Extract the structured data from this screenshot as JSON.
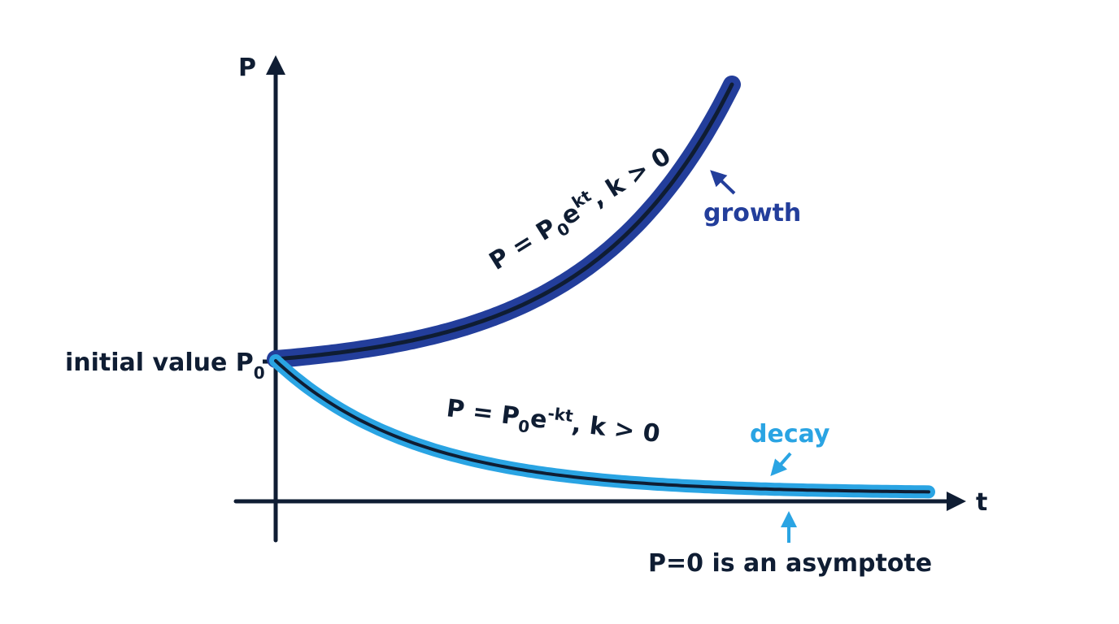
{
  "axes": {
    "y_label": "P",
    "x_label": "t"
  },
  "initial_value": {
    "text": "initial value P",
    "subscript": "0"
  },
  "growth": {
    "label": "growth",
    "formula": {
      "lhs": "P = P",
      "sub": "0",
      "base": "e",
      "exp": "kt",
      "tail": ", k > 0"
    }
  },
  "decay": {
    "label": "decay",
    "formula": {
      "lhs": "P = P",
      "sub": "0",
      "base": "e",
      "exp": "-kt",
      "tail": ", k > 0"
    }
  },
  "asymptote_note": "P=0 is an asymptote",
  "colors": {
    "axis": "#0f1d33",
    "growth": "#233e9b",
    "decay": "#2aa4e3",
    "core": "#0f1d33"
  }
}
